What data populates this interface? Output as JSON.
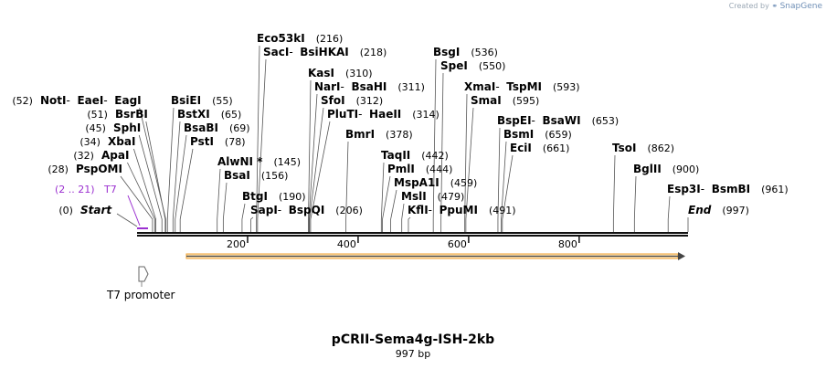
{
  "credit": {
    "prefix": "Created by",
    "brand": "SnapGene"
  },
  "plasmid": {
    "name": "pCRII-Sema4g-ISH-2kb",
    "length_label": "997 bp"
  },
  "colors": {
    "feature_orange": "#f0a030",
    "feature_fill": "#fbe3b8",
    "primer_purple": "#9b30d0",
    "line": "#555555"
  },
  "ruler": {
    "total_bp": 997,
    "ticks": [
      "200",
      "400",
      "600",
      "800"
    ]
  },
  "features": {
    "t7_primer": {
      "label": "T7",
      "range": "(2 .. 21)"
    },
    "t7_promoter": {
      "label": "T7 promoter"
    }
  },
  "sites": [
    {
      "pos": 216,
      "label": "(216)",
      "enzymes": [
        "Eco53kI"
      ]
    },
    {
      "pos": 218,
      "label": "(218)",
      "enzymes": [
        "SacI",
        "BsiHKAI"
      ]
    },
    {
      "pos": 536,
      "label": "(536)",
      "enzymes": [
        "BsgI"
      ]
    },
    {
      "pos": 550,
      "label": "(550)",
      "enzymes": [
        "SpeI"
      ]
    },
    {
      "pos": 310,
      "label": "(310)",
      "enzymes": [
        "KasI"
      ]
    },
    {
      "pos": 311,
      "label": "(311)",
      "enzymes": [
        "NarI",
        "BsaHI"
      ]
    },
    {
      "pos": 312,
      "label": "(312)",
      "enzymes": [
        "SfoI"
      ]
    },
    {
      "pos": 314,
      "label": "(314)",
      "enzymes": [
        "PluTI",
        "HaeII"
      ]
    },
    {
      "pos": 593,
      "label": "(593)",
      "enzymes": [
        "XmaI",
        "TspMI"
      ]
    },
    {
      "pos": 595,
      "label": "(595)",
      "enzymes": [
        "SmaI"
      ]
    },
    {
      "pos": 52,
      "label": "(52)",
      "enzymes": [
        "NotI",
        "EaeI",
        "EagI"
      ]
    },
    {
      "pos": 55,
      "label": "(55)",
      "enzymes": [
        "BsiEI"
      ]
    },
    {
      "pos": 51,
      "label": "(51)",
      "enzymes": [
        "BsrBI"
      ]
    },
    {
      "pos": 65,
      "label": "(65)",
      "enzymes": [
        "BstXI"
      ]
    },
    {
      "pos": 45,
      "label": "(45)",
      "enzymes": [
        "SphI"
      ]
    },
    {
      "pos": 69,
      "label": "(69)",
      "enzymes": [
        "BsaBI"
      ]
    },
    {
      "pos": 34,
      "label": "(34)",
      "enzymes": [
        "XbaI"
      ]
    },
    {
      "pos": 78,
      "label": "(78)",
      "enzymes": [
        "PstI"
      ]
    },
    {
      "pos": 32,
      "label": "(32)",
      "enzymes": [
        "ApaI"
      ]
    },
    {
      "pos": 28,
      "label": "(28)",
      "enzymes": [
        "PspOMI"
      ]
    },
    {
      "pos": 378,
      "label": "(378)",
      "enzymes": [
        "BmrI"
      ]
    },
    {
      "pos": 653,
      "label": "(653)",
      "enzymes": [
        "BspEI",
        "BsaWI"
      ]
    },
    {
      "pos": 659,
      "label": "(659)",
      "enzymes": [
        "BsmI"
      ]
    },
    {
      "pos": 661,
      "label": "(661)",
      "enzymes": [
        "EciI"
      ]
    },
    {
      "pos": 862,
      "label": "(862)",
      "enzymes": [
        "TsoI"
      ]
    },
    {
      "pos": 900,
      "label": "(900)",
      "enzymes": [
        "BglII"
      ]
    },
    {
      "pos": 961,
      "label": "(961)",
      "enzymes": [
        "Esp3I",
        "BsmBI"
      ]
    },
    {
      "pos": 145,
      "label": "(145)",
      "enzymes": [
        "AlwNI *"
      ]
    },
    {
      "pos": 156,
      "label": "(156)",
      "enzymes": [
        "BsaI"
      ]
    },
    {
      "pos": 442,
      "label": "(442)",
      "enzymes": [
        "TaqII"
      ]
    },
    {
      "pos": 444,
      "label": "(444)",
      "enzymes": [
        "PmlI"
      ]
    },
    {
      "pos": 459,
      "label": "(459)",
      "enzymes": [
        "MspA1I"
      ]
    },
    {
      "pos": 479,
      "label": "(479)",
      "enzymes": [
        "MslI"
      ]
    },
    {
      "pos": 491,
      "label": "(491)",
      "enzymes": [
        "KflI",
        "PpuMI"
      ]
    },
    {
      "pos": 190,
      "label": "(190)",
      "enzymes": [
        "BtgI"
      ]
    },
    {
      "pos": 206,
      "label": "(206)",
      "enzymes": [
        "SapI",
        "BspQI"
      ]
    },
    {
      "pos": 0,
      "label": "(0)",
      "enzymes": [
        "Start"
      ]
    },
    {
      "pos": 997,
      "label": "(997)",
      "enzymes": [
        "End"
      ]
    }
  ]
}
